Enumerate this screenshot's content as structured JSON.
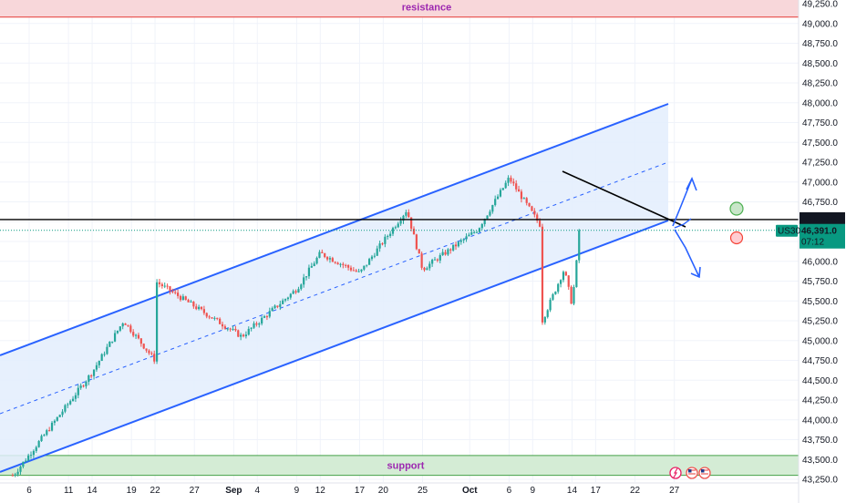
{
  "chart_data": {
    "type": "candlestick",
    "symbol": "US30",
    "title": "",
    "xlabel": "",
    "ylabel": "",
    "ylim": [
      43250,
      49250
    ],
    "grid": true,
    "y_ticks": [
      "49,000.0",
      "48,750.0",
      "48,500.0",
      "48,250.0",
      "48,000.0",
      "47,750.0",
      "47,500.0",
      "47,250.0",
      "47,000.0",
      "46,750.0",
      "46,500.0",
      "46,250.0",
      "46,000.0",
      "45,750.0",
      "45,500.0",
      "45,250.0",
      "45,000.0",
      "44,750.0",
      "44,500.0",
      "44,250.0",
      "44,000.0",
      "43,750.0",
      "43,500.0",
      "43,250.0"
    ],
    "x_ticks": [
      "6",
      "11",
      "14",
      "19",
      "22",
      "27",
      "Sep",
      "4",
      "9",
      "12",
      "17",
      "20",
      "25",
      "Oct",
      "6",
      "9",
      "14",
      "17",
      "22",
      "27"
    ],
    "price_line": {
      "value": 46526.6,
      "label": "46,526.6"
    },
    "current_price": {
      "value": 46391.0,
      "label": "46,391.0",
      "countdown": "07:12",
      "symbol": "US30"
    },
    "zones": {
      "resistance": {
        "label": "resistance",
        "from": 49080,
        "to": 49250
      },
      "support": {
        "label": "support",
        "from": 43300,
        "to": 43550
      }
    },
    "key_points": [
      {
        "date": "Aug 4",
        "price": 43300
      },
      {
        "date": "Aug 14",
        "price": 44600
      },
      {
        "date": "Aug 18",
        "price": 45250
      },
      {
        "date": "Aug 22",
        "price": 44750
      },
      {
        "date": "Aug 22",
        "price": 45750
      },
      {
        "date": "Sep 2",
        "price": 45050
      },
      {
        "date": "Sep 9",
        "price": 45650
      },
      {
        "date": "Sep 12",
        "price": 46100
      },
      {
        "date": "Sep 17",
        "price": 45850
      },
      {
        "date": "Sep 23",
        "price": 46650
      },
      {
        "date": "Sep 25",
        "price": 45900
      },
      {
        "date": "Oct 2",
        "price": 46400
      },
      {
        "date": "Oct 6",
        "price": 47050
      },
      {
        "date": "Oct 10",
        "price": 46450
      },
      {
        "date": "Oct 10",
        "price": 45200
      },
      {
        "date": "Oct 13",
        "price": 45900
      },
      {
        "date": "Oct 14",
        "price": 45450
      },
      {
        "date": "Oct 15",
        "price": 46391
      }
    ]
  },
  "colors": {
    "up": "#26a69a",
    "down": "#ef5350",
    "channel": "#2962ff",
    "channel_fill": "#e3edfd",
    "resistance_fill": "#f8d7da",
    "resistance_border": "#e53935",
    "support_fill": "#d4ecd5",
    "support_border": "#43a047",
    "zone_text": "#9c27b0",
    "price_line": "#000000",
    "current_price_bg": "#089981",
    "target_green": "#4caf50",
    "target_red": "#f44336"
  },
  "icons": [
    "lightning-icon",
    "us-flag-event-icon",
    "us-flag-event-icon"
  ]
}
